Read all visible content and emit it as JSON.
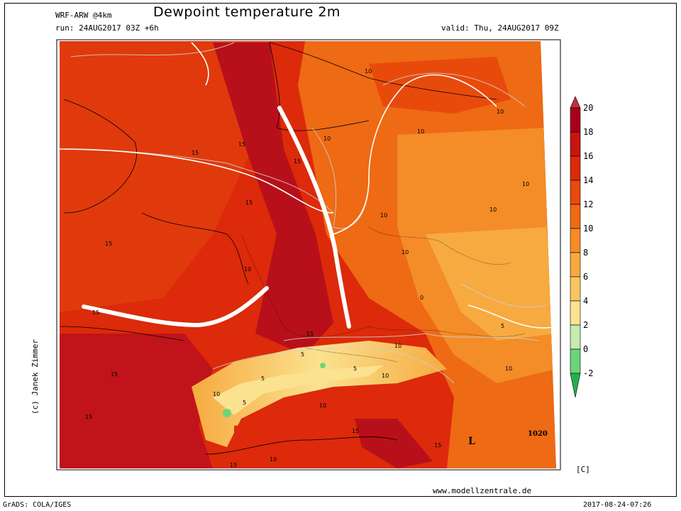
{
  "header": {
    "model": "WRF-ARW @4km",
    "title": "Dewpoint temperature 2m",
    "run": "run: 24AUG2017 03Z +6h",
    "valid": "valid: Thu, 24AUG2017 09Z"
  },
  "footer": {
    "grads": "GrADS: COLA/IGES",
    "website": "www.modellzentrale.de",
    "timestamp": "2017-08-24-07:26",
    "author": "(c) Janek Zimmer"
  },
  "colorbar": {
    "unit": "[C]",
    "labels": [
      "20",
      "18",
      "16",
      "14",
      "12",
      "10",
      "8",
      "6",
      "4",
      "2",
      "0",
      "-2"
    ],
    "colors": [
      "#c0303a",
      "#a8001c",
      "#c81410",
      "#dc2a0a",
      "#e84a0c",
      "#ee6a14",
      "#f48c28",
      "#f6aa40",
      "#f8c660",
      "#fbe290",
      "#c6eab0",
      "#6cd47a",
      "#22b04a"
    ]
  },
  "map_labels": {
    "isodrosotherms": [
      "15",
      "15",
      "15",
      "15",
      "15",
      "15",
      "15",
      "15",
      "15",
      "15",
      "15",
      "15",
      "10",
      "10",
      "10",
      "10",
      "10",
      "10",
      "10",
      "10",
      "10",
      "10",
      "10",
      "10",
      "10",
      "10",
      "10",
      "5",
      "5",
      "5",
      "5",
      "5",
      "0"
    ],
    "isobar": "1020",
    "low": "L"
  },
  "colors": {
    "front": "#ffffff",
    "contour": "#d0d0d0",
    "coast": "#000000"
  }
}
